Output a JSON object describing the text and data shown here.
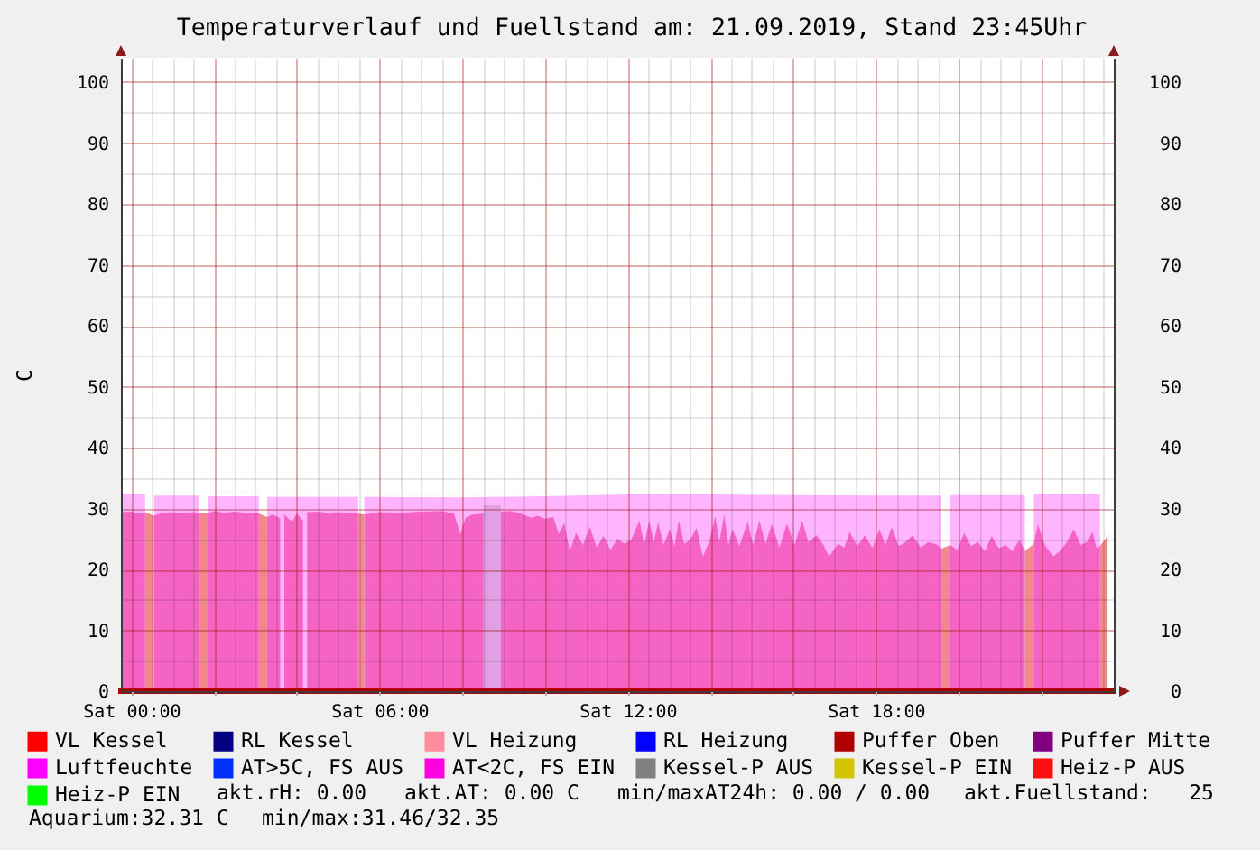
{
  "chart_data": {
    "type": "area",
    "title": "Temperaturverlauf und Fuellstand am: 21.09.2019, Stand 23:45Uhr",
    "ylabel": "C",
    "xlim": [
      "2019-09-20T23:45",
      "2019-09-21T23:45"
    ],
    "xticks": [
      {
        "value": "2019-09-21T00:00",
        "label": "Sat 00:00"
      },
      {
        "value": "2019-09-21T00:30",
        "label": null
      },
      {
        "value": "2019-09-21T01:00",
        "label": null
      },
      {
        "value": "2019-09-21T01:30",
        "label": null
      },
      {
        "value": "2019-09-21T02:00",
        "label": null
      },
      {
        "value": "2019-09-21T02:30",
        "label": null
      },
      {
        "value": "2019-09-21T03:00",
        "label": null
      },
      {
        "value": "2019-09-21T03:30",
        "label": null
      },
      {
        "value": "2019-09-21T04:00",
        "label": null
      },
      {
        "value": "2019-09-21T04:30",
        "label": null
      },
      {
        "value": "2019-09-21T05:00",
        "label": null
      },
      {
        "value": "2019-09-21T05:30",
        "label": null
      },
      {
        "value": "2019-09-21T06:00",
        "label": "Sat 06:00"
      },
      {
        "value": "2019-09-21T06:30",
        "label": null
      },
      {
        "value": "2019-09-21T07:00",
        "label": null
      },
      {
        "value": "2019-09-21T07:30",
        "label": null
      },
      {
        "value": "2019-09-21T08:00",
        "label": null
      },
      {
        "value": "2019-09-21T08:30",
        "label": null
      },
      {
        "value": "2019-09-21T09:00",
        "label": null
      },
      {
        "value": "2019-09-21T09:30",
        "label": null
      },
      {
        "value": "2019-09-21T10:00",
        "label": null
      },
      {
        "value": "2019-09-21T10:30",
        "label": null
      },
      {
        "value": "2019-09-21T11:00",
        "label": null
      },
      {
        "value": "2019-09-21T11:30",
        "label": null
      },
      {
        "value": "2019-09-21T12:00",
        "label": "Sat 12:00"
      },
      {
        "value": "2019-09-21T12:30",
        "label": null
      },
      {
        "value": "2019-09-21T13:00",
        "label": null
      },
      {
        "value": "2019-09-21T13:30",
        "label": null
      },
      {
        "value": "2019-09-21T14:00",
        "label": null
      },
      {
        "value": "2019-09-21T14:30",
        "label": null
      },
      {
        "value": "2019-09-21T15:00",
        "label": null
      },
      {
        "value": "2019-09-21T15:30",
        "label": null
      },
      {
        "value": "2019-09-21T16:00",
        "label": null
      },
      {
        "value": "2019-09-21T16:30",
        "label": null
      },
      {
        "value": "2019-09-21T17:00",
        "label": null
      },
      {
        "value": "2019-09-21T17:30",
        "label": null
      },
      {
        "value": "2019-09-21T18:00",
        "label": "Sat 18:00"
      },
      {
        "value": "2019-09-21T18:30",
        "label": null
      },
      {
        "value": "2019-09-21T19:00",
        "label": null
      },
      {
        "value": "2019-09-21T19:30",
        "label": null
      },
      {
        "value": "2019-09-21T20:00",
        "label": null
      },
      {
        "value": "2019-09-21T20:30",
        "label": null
      },
      {
        "value": "2019-09-21T21:00",
        "label": null
      },
      {
        "value": "2019-09-21T21:30",
        "label": null
      },
      {
        "value": "2019-09-21T22:00",
        "label": null
      },
      {
        "value": "2019-09-21T22:30",
        "label": null
      },
      {
        "value": "2019-09-21T23:00",
        "label": null
      },
      {
        "value": "2019-09-21T23:30",
        "label": null
      }
    ],
    "ylim": [
      0,
      104
    ],
    "yticks": [
      0,
      {
        "value": 5,
        "label": null
      },
      10,
      {
        "value": 15,
        "label": null
      },
      20,
      {
        "value": 25,
        "label": null
      },
      30,
      {
        "value": 35,
        "label": null
      },
      40,
      {
        "value": 45,
        "label": null
      },
      50,
      {
        "value": 55,
        "label": null
      },
      60,
      {
        "value": 65,
        "label": null
      },
      70,
      {
        "value": 75,
        "label": null
      },
      80,
      {
        "value": 85,
        "label": null
      },
      90,
      {
        "value": 95,
        "label": null
      },
      100
    ],
    "y2lim": [
      0,
      104
    ],
    "y2ticks": [
      0,
      10,
      20,
      30,
      40,
      50,
      60,
      70,
      80,
      90,
      100
    ],
    "grid": true,
    "legend": "bottom",
    "series": [
      {
        "color": "#ffb4ff",
        "x": [
          "2019-09-20T23:45",
          "2019-09-21T00:20",
          "2019-09-21T00:26",
          "2019-09-21T00:33",
          "2019-09-21T01:38",
          "2019-09-21T01:44",
          "2019-09-21T01:51",
          "2019-09-21T03:05",
          "2019-09-21T03:11",
          "2019-09-21T03:17",
          "2019-09-21T05:29",
          "2019-09-21T05:33",
          "2019-09-21T05:38",
          "2019-09-21T08:00",
          "2019-09-21T10:00",
          "2019-09-21T12:00",
          "2019-09-21T14:00",
          "2019-09-21T16:00",
          "2019-09-21T18:00",
          "2019-09-21T19:35",
          "2019-09-21T19:41",
          "2019-09-21T19:48",
          "2019-09-21T21:36",
          "2019-09-21T21:42",
          "2019-09-21T21:49",
          "2019-09-21T23:25"
        ],
        "values": [
          32.3,
          32.3,
          null,
          32.1,
          32.1,
          null,
          32.0,
          32.0,
          null,
          31.9,
          31.9,
          null,
          31.9,
          31.8,
          32.0,
          32.3,
          32.3,
          32.2,
          32.1,
          32.1,
          null,
          32.2,
          32.2,
          null,
          32.3,
          32.3
        ]
      },
      {
        "color": "#f564c4",
        "x": [
          "2019-09-20T23:45",
          "2019-09-21T00:00",
          "2019-09-21T00:10",
          "2019-09-21T00:20",
          "2019-09-21T00:26",
          "2019-09-21T00:33",
          "2019-09-21T00:45",
          "2019-09-21T01:00",
          "2019-09-21T01:15",
          "2019-09-21T01:30",
          "2019-09-21T01:38",
          "2019-09-21T01:44",
          "2019-09-21T01:51",
          "2019-09-21T02:00",
          "2019-09-21T02:15",
          "2019-09-21T02:30",
          "2019-09-21T02:45",
          "2019-09-21T03:05",
          "2019-09-21T03:11",
          "2019-09-21T03:17",
          "2019-09-21T03:25",
          "2019-09-21T03:36",
          "2019-09-21T03:39",
          "2019-09-21T03:42",
          "2019-09-21T03:53",
          "2019-09-21T04:00",
          "2019-09-21T04:09",
          "2019-09-21T04:12",
          "2019-09-21T04:15",
          "2019-09-21T04:30",
          "2019-09-21T04:45",
          "2019-09-21T05:00",
          "2019-09-21T05:15",
          "2019-09-21T05:29",
          "2019-09-21T05:33",
          "2019-09-21T05:38",
          "2019-09-21T06:00",
          "2019-09-21T06:30",
          "2019-09-21T07:00",
          "2019-09-21T07:30",
          "2019-09-21T07:48",
          "2019-09-21T07:57",
          "2019-09-21T08:05",
          "2019-09-21T08:15",
          "2019-09-21T08:31",
          "2019-09-21T08:43",
          "2019-09-21T08:56",
          "2019-09-21T09:10",
          "2019-09-21T09:25",
          "2019-09-21T09:40",
          "2019-09-21T09:50",
          "2019-09-21T10:00",
          "2019-09-21T10:12",
          "2019-09-21T10:20",
          "2019-09-21T10:28",
          "2019-09-21T10:36",
          "2019-09-21T10:45",
          "2019-09-21T10:55",
          "2019-09-21T11:05",
          "2019-09-21T11:15",
          "2019-09-21T11:25",
          "2019-09-21T11:35",
          "2019-09-21T11:45",
          "2019-09-21T11:55",
          "2019-09-21T12:05",
          "2019-09-21T12:17",
          "2019-09-21T12:24",
          "2019-09-21T12:31",
          "2019-09-21T12:38",
          "2019-09-21T12:44",
          "2019-09-21T12:52",
          "2019-09-21T13:01",
          "2019-09-21T13:08",
          "2019-09-21T13:14",
          "2019-09-21T13:22",
          "2019-09-21T13:30",
          "2019-09-21T13:40",
          "2019-09-21T13:49",
          "2019-09-21T13:58",
          "2019-09-21T14:07",
          "2019-09-21T14:13",
          "2019-09-21T14:20",
          "2019-09-21T14:26",
          "2019-09-21T14:32",
          "2019-09-21T14:42",
          "2019-09-21T14:54",
          "2019-09-21T15:02",
          "2019-09-21T15:11",
          "2019-09-21T15:20",
          "2019-09-21T15:29",
          "2019-09-21T15:40",
          "2019-09-21T15:51",
          "2019-09-21T16:02",
          "2019-09-21T16:13",
          "2019-09-21T16:22",
          "2019-09-21T16:34",
          "2019-09-21T16:44",
          "2019-09-21T16:52",
          "2019-09-21T17:05",
          "2019-09-21T17:14",
          "2019-09-21T17:22",
          "2019-09-21T17:33",
          "2019-09-21T17:44",
          "2019-09-21T17:55",
          "2019-09-21T18:05",
          "2019-09-21T18:14",
          "2019-09-21T18:23",
          "2019-09-21T18:33",
          "2019-09-21T18:43",
          "2019-09-21T18:53",
          "2019-09-21T19:05",
          "2019-09-21T19:16",
          "2019-09-21T19:28",
          "2019-09-21T19:35",
          "2019-09-21T19:41",
          "2019-09-21T19:48",
          "2019-09-21T19:58",
          "2019-09-21T20:08",
          "2019-09-21T20:18",
          "2019-09-21T20:28",
          "2019-09-21T20:38",
          "2019-09-21T20:48",
          "2019-09-21T20:58",
          "2019-09-21T21:08",
          "2019-09-21T21:18",
          "2019-09-21T21:28",
          "2019-09-21T21:36",
          "2019-09-21T21:42",
          "2019-09-21T21:49",
          "2019-09-21T21:55",
          "2019-09-21T22:05",
          "2019-09-21T22:17",
          "2019-09-21T22:27",
          "2019-09-21T22:37",
          "2019-09-21T22:47",
          "2019-09-21T22:57",
          "2019-09-21T23:06",
          "2019-09-21T23:14",
          "2019-09-21T23:20",
          "2019-09-21T23:25"
        ],
        "values": [
          29.4,
          29.5,
          29.2,
          29.4,
          null,
          28.8,
          29.3,
          29.4,
          29.2,
          29.4,
          29.3,
          null,
          29.2,
          29.6,
          29.3,
          29.5,
          29.3,
          29.2,
          null,
          28.6,
          29.0,
          28.4,
          null,
          29.0,
          27.8,
          29.2,
          28.0,
          null,
          29.4,
          29.5,
          29.3,
          29.4,
          29.3,
          29.2,
          null,
          29.0,
          29.4,
          29.3,
          29.5,
          29.6,
          29.2,
          25.8,
          28.5,
          29.0,
          29.2,
          null,
          29.5,
          29.6,
          29.2,
          28.5,
          28.8,
          28.3,
          28.6,
          25.8,
          27.6,
          23.0,
          26.0,
          24.0,
          27.0,
          23.6,
          25.5,
          23.2,
          25.0,
          24.2,
          24.8,
          28.0,
          24.0,
          28.0,
          24.5,
          27.7,
          24.0,
          26.6,
          23.8,
          28.0,
          24.2,
          24.8,
          26.8,
          22.1,
          24.5,
          28.7,
          24.6,
          29.0,
          24.0,
          26.6,
          23.8,
          27.8,
          24.0,
          28.0,
          24.2,
          27.5,
          23.6,
          27.5,
          24.0,
          28.0,
          24.5,
          25.6,
          24.0,
          22.1,
          24.2,
          23.6,
          26.1,
          23.8,
          25.6,
          23.5,
          26.6,
          24.0,
          27.0,
          23.8,
          24.5,
          25.6,
          23.6,
          24.5,
          24.1,
          23.4,
          null,
          24.0,
          23.2,
          26.0,
          23.8,
          24.5,
          23.0,
          25.5,
          23.5,
          24.0,
          23.0,
          24.8,
          23.0,
          null,
          24.2,
          27.4,
          24.0,
          22.1,
          23.0,
          24.5,
          26.6,
          24.0,
          24.5,
          26.1,
          23.5,
          23.8
        ]
      },
      {
        "color": "#f2888e",
        "x": [
          "2019-09-21T00:20",
          "2019-09-21T00:33",
          "2019-09-21T01:00",
          "2019-09-21T01:38",
          "2019-09-21T01:51",
          "2019-09-21T02:30",
          "2019-09-21T03:05",
          "2019-09-21T03:17",
          "2019-09-21T04:00",
          "2019-09-21T05:29",
          "2019-09-21T05:38",
          "2019-09-21T12:00",
          "2019-09-21T19:35",
          "2019-09-21T19:48",
          "2019-09-21T20:30",
          "2019-09-21T21:36",
          "2019-09-21T21:49",
          "2019-09-21T22:30",
          "2019-09-21T23:25",
          "2019-09-21T23:36"
        ],
        "values": [
          29.4,
          28.8,
          null,
          29.3,
          29.2,
          null,
          29.2,
          28.6,
          null,
          29.2,
          29.0,
          null,
          23.4,
          24.0,
          null,
          23.0,
          24.2,
          null,
          23.8,
          25.5
        ]
      },
      {
        "color": "#e1a0e1",
        "x": [
          "2019-09-21T08:31",
          "2019-09-21T08:56"
        ],
        "values": [
          30.5,
          30.5
        ]
      },
      {
        "name": "VL Kessel",
        "type": "line",
        "color": "#ff0000"
      },
      {
        "name": "RL Kessel",
        "type": "line",
        "color": "#000080"
      },
      {
        "name": "VL Heizung",
        "type": "line",
        "color": "#ff8c9c"
      },
      {
        "name": "RL Heizung",
        "type": "line",
        "color": "#0000ff"
      },
      {
        "name": "Puffer Oben",
        "type": "line",
        "color": "#b00000",
        "x": [
          "2019-09-20T23:45",
          "2019-09-21T23:45"
        ],
        "values": [
          0,
          0
        ]
      },
      {
        "name": "Puffer Mitte",
        "type": "line",
        "color": "#800080"
      },
      {
        "name": "Luftfeuchte",
        "type": "line",
        "color": "#ff00ff"
      },
      {
        "name": "AT>5C, FS AUS",
        "type": "line",
        "color": "#0030ff"
      },
      {
        "name": "AT<2C, FS EIN",
        "type": "line",
        "color": "#ff00e0"
      },
      {
        "name": "Kessel-P AUS",
        "type": "line",
        "color": "#808080"
      },
      {
        "name": "Kessel-P EIN",
        "type": "line",
        "color": "#d4c400"
      },
      {
        "name": "Heiz-P AUS",
        "type": "line",
        "color": "#ff1010"
      },
      {
        "name": "Heiz-P EIN",
        "type": "line",
        "color": "#00ff00"
      }
    ],
    "annotations": [
      "akt.rH: 0.00",
      "akt.AT: 0.00 C",
      "min/maxAT24h: 0.00 / 0.00",
      "akt.Fuellstand:   25",
      "Aquarium:32.31 C",
      "min/max:31.46/32.35"
    ]
  }
}
